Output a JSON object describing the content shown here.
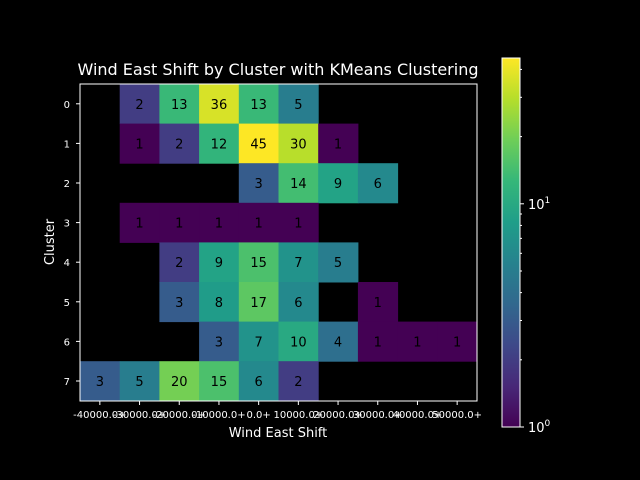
{
  "chart_data": {
    "type": "heatmap",
    "title": "Wind East Shift by Cluster with KMeans Clustering",
    "xlabel": "Wind East Shift",
    "ylabel": "Cluster",
    "x_ticks": [
      "-40000.0+",
      "-30000.0+",
      "-20000.0+",
      "-10000.0+",
      "0.0+",
      "10000.0+",
      "20000.0+",
      "30000.0+",
      "40000.0+",
      "50000.0+"
    ],
    "y_ticks": [
      "0",
      "1",
      "2",
      "3",
      "4",
      "5",
      "6",
      "7"
    ],
    "values": [
      [
        null,
        2,
        13,
        36,
        13,
        5,
        null,
        null,
        null,
        null
      ],
      [
        null,
        1,
        2,
        12,
        45,
        30,
        1,
        null,
        null,
        null
      ],
      [
        null,
        null,
        null,
        null,
        3,
        14,
        9,
        6,
        null,
        null
      ],
      [
        null,
        1,
        1,
        1,
        1,
        1,
        null,
        null,
        null,
        null
      ],
      [
        null,
        null,
        2,
        9,
        15,
        7,
        5,
        null,
        null,
        null
      ],
      [
        null,
        null,
        3,
        8,
        17,
        6,
        null,
        1,
        null,
        null
      ],
      [
        null,
        null,
        null,
        3,
        7,
        10,
        4,
        1,
        1,
        1
      ],
      [
        3,
        5,
        20,
        15,
        6,
        2,
        null,
        null,
        null,
        null
      ]
    ],
    "color_scale": "log",
    "colormap": "viridis",
    "vmin": 1,
    "vmax": 45,
    "colorbar_labels": {
      "base": "10",
      "low_exp": "0",
      "high_exp": "1"
    },
    "background": "#000000",
    "text_color": "#000000",
    "grid": false
  }
}
